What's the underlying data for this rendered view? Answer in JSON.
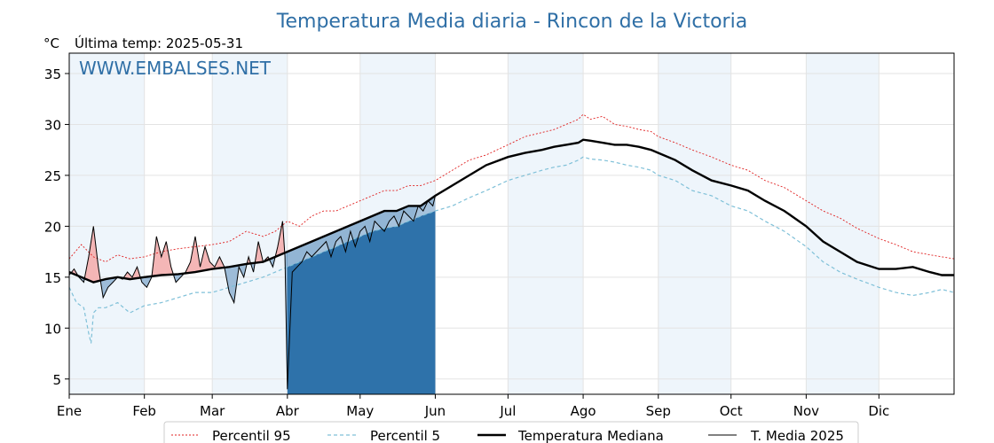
{
  "chart_data": {
    "type": "line",
    "title": "Temperatura Media diaria - Rincon de la Victoria",
    "ylabel": "°C",
    "last_temp_label": "Última temp: 2025-05-31",
    "watermark": "WWW.EMBALSES.NET",
    "ylim": [
      3.5,
      37
    ],
    "xlim_days": [
      0,
      365
    ],
    "yticks": [
      5,
      10,
      15,
      20,
      25,
      30,
      35
    ],
    "months": [
      {
        "label": "Ene",
        "day": 0
      },
      {
        "label": "Feb",
        "day": 31
      },
      {
        "label": "Mar",
        "day": 59
      },
      {
        "label": "Abr",
        "day": 90
      },
      {
        "label": "May",
        "day": 120
      },
      {
        "label": "Jun",
        "day": 151
      },
      {
        "label": "Jul",
        "day": 181
      },
      {
        "label": "Ago",
        "day": 212
      },
      {
        "label": "Sep",
        "day": 243
      },
      {
        "label": "Oct",
        "day": 273
      },
      {
        "label": "Nov",
        "day": 304
      },
      {
        "label": "Dic",
        "day": 334
      }
    ],
    "grid": true,
    "legend_position": "bottom-center",
    "colors": {
      "title": "#2f6fa6",
      "p95": "#e02020",
      "p5": "#7fc0d8",
      "median": "#000000",
      "t2025": "#000000",
      "above": "#f4b6b6",
      "below_light": "#9dbcd8",
      "below_dark": "#2e72aa",
      "band": "#eef5fb"
    },
    "series": [
      {
        "name": "Percentil 95",
        "key": "p95",
        "x": [
          0,
          5,
          10,
          15,
          20,
          25,
          31,
          38,
          45,
          52,
          59,
          66,
          73,
          80,
          85,
          90,
          95,
          100,
          105,
          110,
          115,
          120,
          125,
          130,
          135,
          140,
          145,
          151,
          158,
          165,
          172,
          181,
          188,
          195,
          200,
          205,
          210,
          212,
          215,
          220,
          225,
          230,
          235,
          240,
          243,
          250,
          257,
          265,
          273,
          280,
          287,
          295,
          304,
          311,
          318,
          325,
          334,
          341,
          348,
          355,
          360,
          365
        ],
        "y": [
          16.8,
          18.2,
          17.0,
          16.5,
          17.2,
          16.8,
          17.0,
          17.5,
          17.8,
          18.0,
          18.2,
          18.5,
          19.5,
          19.0,
          19.5,
          20.5,
          20.0,
          21.0,
          21.5,
          21.5,
          22.0,
          22.5,
          23.0,
          23.5,
          23.5,
          24.0,
          24.0,
          24.5,
          25.5,
          26.5,
          27.0,
          28.0,
          28.8,
          29.2,
          29.5,
          30.0,
          30.5,
          31.0,
          30.5,
          30.8,
          30.0,
          29.8,
          29.5,
          29.3,
          28.8,
          28.2,
          27.5,
          26.8,
          26.0,
          25.5,
          24.5,
          23.8,
          22.5,
          21.5,
          20.8,
          19.8,
          18.8,
          18.2,
          17.5,
          17.2,
          17.0,
          16.8
        ]
      },
      {
        "name": "Percentil 5",
        "key": "p5",
        "x": [
          0,
          3,
          6,
          8,
          9,
          10,
          12,
          15,
          20,
          25,
          31,
          38,
          45,
          52,
          59,
          66,
          73,
          80,
          85,
          90,
          95,
          100,
          105,
          110,
          115,
          120,
          125,
          130,
          135,
          140,
          145,
          151,
          158,
          165,
          172,
          181,
          188,
          195,
          200,
          205,
          210,
          212,
          215,
          220,
          225,
          230,
          235,
          240,
          243,
          250,
          257,
          265,
          273,
          280,
          287,
          295,
          304,
          311,
          318,
          325,
          334,
          341,
          348,
          355,
          360,
          365
        ],
        "y": [
          14.0,
          12.5,
          12.0,
          9.5,
          8.5,
          11.5,
          12.0,
          12.0,
          12.5,
          11.5,
          12.2,
          12.5,
          13.0,
          13.5,
          13.5,
          14.0,
          14.5,
          15.0,
          15.5,
          16.0,
          16.5,
          17.0,
          17.5,
          18.0,
          18.5,
          19.0,
          19.5,
          19.8,
          20.0,
          20.5,
          21.0,
          21.5,
          22.0,
          22.8,
          23.5,
          24.5,
          25.0,
          25.5,
          25.8,
          26.0,
          26.5,
          26.8,
          26.6,
          26.5,
          26.3,
          26.0,
          25.8,
          25.5,
          25.0,
          24.5,
          23.5,
          23.0,
          22.0,
          21.5,
          20.5,
          19.5,
          18.0,
          16.5,
          15.5,
          14.8,
          14.0,
          13.5,
          13.2,
          13.5,
          13.8,
          13.5
        ]
      },
      {
        "name": "Temperatura Mediana",
        "key": "median",
        "x": [
          0,
          5,
          10,
          15,
          20,
          25,
          31,
          38,
          45,
          52,
          59,
          66,
          73,
          80,
          85,
          90,
          95,
          100,
          105,
          110,
          115,
          120,
          125,
          130,
          135,
          140,
          145,
          151,
          158,
          165,
          172,
          181,
          188,
          195,
          200,
          205,
          210,
          212,
          215,
          220,
          225,
          230,
          235,
          240,
          243,
          250,
          257,
          265,
          273,
          280,
          287,
          295,
          304,
          311,
          318,
          325,
          334,
          341,
          348,
          355,
          360,
          365
        ],
        "y": [
          15.5,
          15.0,
          14.5,
          14.8,
          15.0,
          14.8,
          15.0,
          15.2,
          15.3,
          15.5,
          15.8,
          16.0,
          16.3,
          16.5,
          17.0,
          17.5,
          18.0,
          18.5,
          19.0,
          19.5,
          20.0,
          20.5,
          21.0,
          21.5,
          21.5,
          22.0,
          22.0,
          23.0,
          24.0,
          25.0,
          26.0,
          26.8,
          27.2,
          27.5,
          27.8,
          28.0,
          28.2,
          28.5,
          28.4,
          28.2,
          28.0,
          28.0,
          27.8,
          27.5,
          27.2,
          26.5,
          25.5,
          24.5,
          24.0,
          23.5,
          22.5,
          21.5,
          20.0,
          18.5,
          17.5,
          16.5,
          15.8,
          15.8,
          16.0,
          15.5,
          15.2,
          15.2
        ]
      },
      {
        "name": "T. Media 2025",
        "key": "t2025",
        "x": [
          0,
          2,
          4,
          6,
          8,
          10,
          12,
          14,
          16,
          18,
          20,
          22,
          24,
          26,
          28,
          30,
          32,
          34,
          36,
          38,
          40,
          42,
          44,
          46,
          48,
          50,
          52,
          54,
          56,
          58,
          60,
          62,
          64,
          66,
          68,
          70,
          72,
          74,
          76,
          78,
          80,
          82,
          84,
          86,
          88,
          89,
          90,
          92,
          94,
          96,
          98,
          100,
          102,
          104,
          106,
          108,
          110,
          112,
          114,
          116,
          118,
          120,
          122,
          124,
          126,
          128,
          130,
          132,
          134,
          136,
          138,
          140,
          142,
          144,
          146,
          148,
          150,
          151
        ],
        "y": [
          15.2,
          15.8,
          15.0,
          14.5,
          17.0,
          20.0,
          16.0,
          13.0,
          14.0,
          14.5,
          15.0,
          14.8,
          15.5,
          15.0,
          16.0,
          14.5,
          14.0,
          15.0,
          19.0,
          17.0,
          18.5,
          16.0,
          14.5,
          15.0,
          15.5,
          16.5,
          19.0,
          16.0,
          18.0,
          16.5,
          16.0,
          17.0,
          16.0,
          13.5,
          12.5,
          16.0,
          15.0,
          17.0,
          15.5,
          18.5,
          16.5,
          17.0,
          16.0,
          18.0,
          20.5,
          17.0,
          4.0,
          15.5,
          16.0,
          16.5,
          17.5,
          17.0,
          17.5,
          18.0,
          18.5,
          17.0,
          18.5,
          19.0,
          17.5,
          19.5,
          18.0,
          19.5,
          20.0,
          18.5,
          20.5,
          20.0,
          19.5,
          20.5,
          21.0,
          20.0,
          21.5,
          21.0,
          20.5,
          22.0,
          21.5,
          22.5,
          22.0,
          23.0
        ]
      }
    ]
  }
}
